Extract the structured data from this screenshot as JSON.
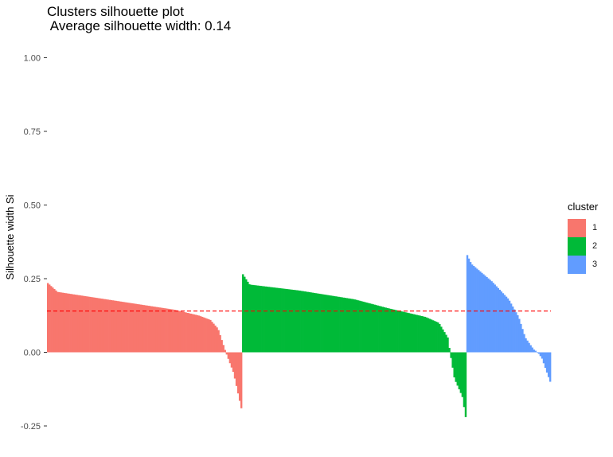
{
  "title": "Clusters silhouette plot",
  "subtitle": " Average silhouette width: 0.14",
  "chart_data": {
    "type": "bar",
    "title": "Clusters silhouette plot",
    "subtitle": " Average silhouette width: 0.14",
    "xlabel": "",
    "ylabel": "Silhouette width Si",
    "ylim": [
      -0.28,
      1.02
    ],
    "yticks": [
      1.0,
      0.75,
      0.5,
      0.25,
      0.0,
      -0.25
    ],
    "ytick_labels": [
      "1.00",
      "0.75",
      "0.50",
      "0.25",
      "0.00",
      "-0.25"
    ],
    "grid": false,
    "average_line": {
      "value": 0.14,
      "color": "#FF0000",
      "style": "dashed"
    },
    "legend": {
      "title": "cluster",
      "position": "right",
      "entries": [
        {
          "label": "1",
          "color": "#F8766D"
        },
        {
          "label": "2",
          "color": "#00BA38"
        },
        {
          "label": "3",
          "color": "#619CFF"
        }
      ]
    },
    "series": [
      {
        "cluster": "1",
        "color": "#F8766D",
        "n_bars": 120,
        "profile": [
          [
            0,
            0.235
          ],
          [
            0.05,
            0.205
          ],
          [
            0.3,
            0.18
          ],
          [
            0.5,
            0.16
          ],
          [
            0.65,
            0.145
          ],
          [
            0.78,
            0.125
          ],
          [
            0.84,
            0.11
          ],
          [
            0.88,
            0.08
          ],
          [
            0.9,
            0.04
          ],
          [
            0.92,
            0.0
          ],
          [
            0.96,
            -0.07
          ],
          [
            1.0,
            -0.19
          ]
        ]
      },
      {
        "cluster": "2",
        "color": "#00BA38",
        "n_bars": 138,
        "profile": [
          [
            0,
            0.265
          ],
          [
            0.03,
            0.23
          ],
          [
            0.25,
            0.21
          ],
          [
            0.5,
            0.18
          ],
          [
            0.65,
            0.15
          ],
          [
            0.82,
            0.12
          ],
          [
            0.88,
            0.1
          ],
          [
            0.92,
            0.05
          ],
          [
            0.93,
            0.0
          ],
          [
            0.95,
            -0.09
          ],
          [
            0.985,
            -0.15
          ],
          [
            1.0,
            -0.22
          ]
        ]
      },
      {
        "cluster": "3",
        "color": "#619CFF",
        "n_bars": 52,
        "profile": [
          [
            0,
            0.33
          ],
          [
            0.05,
            0.3
          ],
          [
            0.3,
            0.24
          ],
          [
            0.5,
            0.18
          ],
          [
            0.62,
            0.12
          ],
          [
            0.7,
            0.05
          ],
          [
            0.8,
            0.01
          ],
          [
            0.85,
            0.0
          ],
          [
            0.9,
            -0.02
          ],
          [
            1.0,
            -0.1
          ]
        ]
      }
    ]
  }
}
